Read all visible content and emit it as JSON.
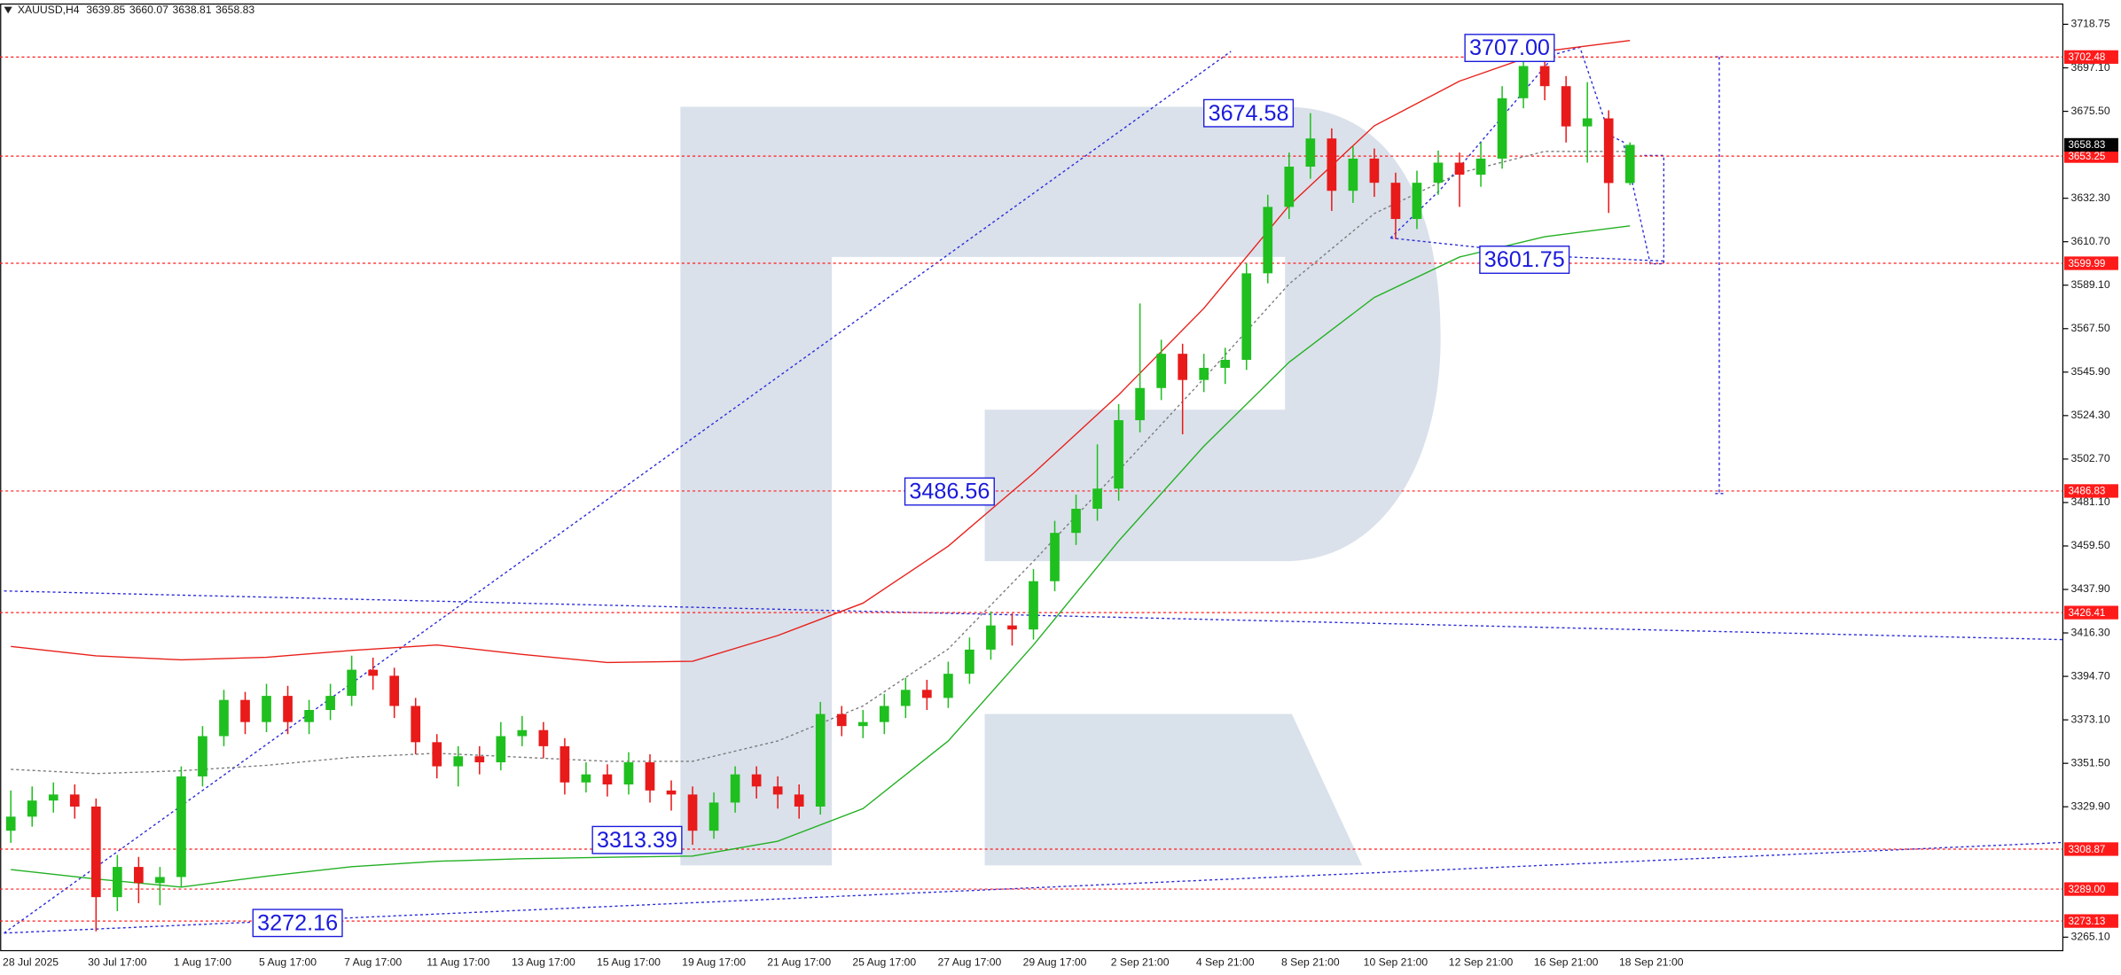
{
  "chart_data": {
    "type": "candlestick",
    "symbol": "XAUUSD,H4",
    "categories": [
      "28 Jul 2025",
      null,
      null,
      null,
      null,
      "30 Jul 17:00",
      null,
      null,
      null,
      "1 Aug 17:00",
      null,
      null,
      null,
      "5 Aug 17:00",
      null,
      null,
      null,
      "7 Aug 17:00",
      null,
      null,
      null,
      "11 Aug 17:00",
      null,
      null,
      null,
      "13 Aug 17:00",
      null,
      null,
      null,
      "15 Aug 17:00",
      null,
      null,
      null,
      "19 Aug 17:00",
      null,
      null,
      null,
      "21 Aug 17:00",
      null,
      null,
      null,
      "25 Aug 17:00",
      null,
      null,
      null,
      "27 Aug 17:00",
      null,
      null,
      null,
      "29 Aug 17:00",
      null,
      null,
      null,
      "2 Sep 21:00",
      null,
      null,
      null,
      "4 Sep 21:00",
      null,
      null,
      null,
      "8 Sep 21:00",
      null,
      null,
      null,
      "10 Sep 21:00",
      null,
      null,
      null,
      "12 Sep 21:00",
      null,
      null,
      null,
      "16 Sep 21:00",
      null,
      null,
      null,
      "18 Sep 21:00"
    ],
    "open": [
      3318,
      3325,
      3333,
      3336,
      3330,
      3285,
      3300,
      3292,
      3295,
      3345,
      3365,
      3383,
      3372,
      3385,
      3372,
      3378,
      3385,
      3398,
      3395,
      3380,
      3362,
      3350,
      3355,
      3352,
      3365,
      3368,
      3360,
      3342,
      3346,
      3341,
      3352,
      3338,
      3336,
      3318,
      3332,
      3346,
      3340,
      3336,
      3330,
      3376,
      3370,
      3372,
      3380,
      3388,
      3384,
      3396,
      3408,
      3420,
      3418,
      3442,
      3466,
      3478,
      3488,
      3522,
      3538,
      3555,
      3542,
      3548,
      3552,
      3595,
      3628,
      3648,
      3662,
      3636,
      3652,
      3640,
      3622,
      3640,
      3650,
      3644,
      3652,
      3682,
      3698,
      3688,
      3668,
      3672,
      3639.85,
      null
    ],
    "high": [
      3338,
      3340,
      3342,
      3341,
      3334,
      3306,
      3305,
      3300,
      3350,
      3370,
      3388,
      3387,
      3391,
      3390,
      3383,
      3391,
      3405,
      3404,
      3399,
      3384,
      3366,
      3360,
      3360,
      3372,
      3375,
      3372,
      3364,
      3352,
      3351,
      3357,
      3356,
      3343,
      3340,
      3337,
      3350,
      3350,
      3345,
      3341,
      3382,
      3380,
      3378,
      3386,
      3394,
      3393,
      3402,
      3414,
      3427,
      3426,
      3448,
      3472,
      3485,
      3510,
      3530,
      3580,
      3562,
      3560,
      3555,
      3558,
      3600,
      3634,
      3655,
      3674.58,
      3667,
      3658,
      3657,
      3645,
      3646,
      3656,
      3655,
      3660,
      3688,
      3707,
      3704,
      3693,
      3690,
      3676,
      3660.07,
      null
    ],
    "low": [
      3312,
      3320,
      3327,
      3324,
      3268,
      3278,
      3282,
      3281,
      3290,
      3340,
      3360,
      3366,
      3367,
      3366,
      3366,
      3373,
      3380,
      3388,
      3374,
      3356,
      3344,
      3340,
      3346,
      3348,
      3360,
      3354,
      3336,
      3337,
      3335,
      3336,
      3332,
      3328,
      3311,
      3314,
      3327,
      3334,
      3329,
      3324,
      3326,
      3365,
      3364,
      3366,
      3374,
      3378,
      3379,
      3391,
      3403,
      3410,
      3413,
      3437,
      3460,
      3472,
      3482,
      3516,
      3532,
      3515,
      3536,
      3540,
      3547,
      3590,
      3622,
      3642,
      3626,
      3630,
      3633,
      3612,
      3617,
      3634,
      3628,
      3638,
      3647,
      3677,
      3681,
      3660,
      3650,
      3625,
      3638.81,
      null
    ],
    "close": [
      3325,
      3333,
      3336,
      3330,
      3285,
      3300,
      3292,
      3295,
      3345,
      3365,
      3383,
      3372,
      3385,
      3372,
      3378,
      3385,
      3398,
      3395,
      3380,
      3362,
      3350,
      3355,
      3352,
      3365,
      3368,
      3360,
      3342,
      3346,
      3341,
      3352,
      3338,
      3336,
      3318,
      3332,
      3346,
      3340,
      3336,
      3330,
      3376,
      3370,
      3372,
      3380,
      3388,
      3384,
      3396,
      3408,
      3420,
      3418,
      3442,
      3466,
      3478,
      3488,
      3522,
      3538,
      3555,
      3542,
      3548,
      3552,
      3595,
      3628,
      3648,
      3662,
      3636,
      3652,
      3640,
      3622,
      3640,
      3650,
      3644,
      3652,
      3682,
      3698,
      3688,
      3668,
      3672,
      3639.85,
      3658.83,
      null
    ],
    "up_color": "#1fbf1f",
    "down_color": "#e81a1a",
    "ylim": [
      3258.4,
      3728.8
    ],
    "yticks": [
      3718.75,
      {
        "value": 3697.1,
        "label": "3697.10"
      },
      {
        "value": 3675.5,
        "label": "3675.50"
      },
      {
        "value": 3632.3,
        "label": "3632.30"
      },
      {
        "value": 3610.7,
        "label": "3610.70"
      },
      {
        "value": 3589.1,
        "label": "3589.10"
      },
      {
        "value": 3567.5,
        "label": "3567.50"
      },
      {
        "value": 3545.9,
        "label": "3545.90"
      },
      {
        "value": 3524.3,
        "label": "3524.30"
      },
      {
        "value": 3502.7,
        "label": "3502.70"
      },
      {
        "value": 3481.1,
        "label": "3481.10"
      },
      {
        "value": 3459.5,
        "label": "3459.50"
      },
      {
        "value": 3437.9,
        "label": "3437.90"
      },
      {
        "value": 3416.3,
        "label": "3416.30"
      },
      {
        "value": 3394.7,
        "label": "3394.70"
      },
      {
        "value": 3373.1,
        "label": "3373.10"
      },
      {
        "value": 3351.5,
        "label": "3351.50"
      },
      {
        "value": 3329.9,
        "label": "3329.90"
      },
      {
        "value": 3265.1,
        "label": "3265.10"
      }
    ],
    "grid": false,
    "overlays": [
      {
        "color": "#e8201a",
        "style": "solid",
        "x": [
          0,
          4,
          8,
          12,
          16,
          20,
          24,
          28,
          32,
          36,
          40,
          44,
          48,
          52,
          56,
          60,
          64,
          68,
          72,
          76
        ],
        "values": [
          3409.6,
          3404.9,
          3402.9,
          3404.2,
          3407.6,
          3410.3,
          3405.6,
          3401.6,
          3402.2,
          3415,
          3431.1,
          3459.4,
          3495.6,
          3534.6,
          3577.6,
          3628.7,
          3668.3,
          3690.5,
          3705.3,
          3710.7
        ]
      },
      {
        "color": "#7a7a7a",
        "style": "dotted",
        "x": [
          0,
          4,
          8,
          12,
          16,
          20,
          24,
          28,
          32,
          36,
          40,
          44,
          48,
          52,
          56,
          60,
          64,
          68,
          72,
          76
        ],
        "values": [
          3348.5,
          3346.4,
          3347.8,
          3350.5,
          3354.5,
          3356.5,
          3354.5,
          3352.5,
          3352.5,
          3362.6,
          3380,
          3408.3,
          3451.9,
          3497,
          3542.7,
          3589.7,
          3624.7,
          3644.8,
          3655.6,
          3655.6
        ]
      },
      {
        "color": "#22b022",
        "style": "solid",
        "x": [
          0,
          4,
          8,
          12,
          16,
          20,
          24,
          28,
          32,
          36,
          40,
          44,
          48,
          52,
          56,
          60,
          64,
          68,
          72,
          76
        ],
        "values": [
          3298.7,
          3294,
          3290,
          3295.4,
          3300.1,
          3302.8,
          3304.1,
          3304.8,
          3305.4,
          3312.8,
          3329,
          3362.6,
          3410.3,
          3462,
          3509.1,
          3550.8,
          3583,
          3603.1,
          3613.2,
          3618.6
        ]
      }
    ],
    "level_color": "#ff1a1a",
    "levels": [
      3702.48,
      3653.25,
      3599.99,
      3486.83,
      3426.41,
      3308.87,
      {
        "value": 3289,
        "label": "3289.00"
      },
      3273.13
    ],
    "annotation_color": "#1a1adc",
    "annotations": [
      {
        "value": 3707,
        "label": "3707.00"
      },
      {
        "value": 3674.58,
        "label": "3674.58"
      },
      {
        "value": 3601.75,
        "label": "3601.75"
      },
      {
        "value": 3486.56,
        "label": "3486.56"
      },
      {
        "value": 3313.39,
        "label": "3313.39"
      },
      {
        "value": 3272.16,
        "label": "3272.16"
      }
    ]
  }
}
